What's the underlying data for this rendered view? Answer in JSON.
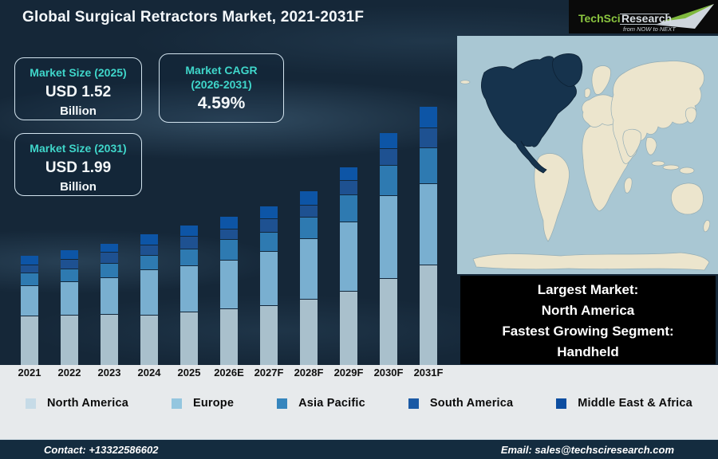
{
  "header": {
    "title": "Global Surgical Retractors Market, 2021-2031F"
  },
  "logo": {
    "brand_primary": "TechSci",
    "brand_secondary": "Research",
    "tagline": "from NOW to NEXT",
    "accent_green": "#8bc53f",
    "silver": "#d7dde2"
  },
  "info_boxes": [
    {
      "title": "Market Size (2025)",
      "value": "USD 1.52",
      "unit": "Billion"
    },
    {
      "title": "Market CAGR",
      "title_line2": "(2026-2031)",
      "value": "4.59%"
    },
    {
      "title": "Market Size (2031)",
      "value": "USD 1.99",
      "unit": "Billion"
    }
  ],
  "highlight_box": {
    "lines": [
      "Largest Market:",
      "North America",
      "Fastest Growing Segment:",
      "Handheld"
    ]
  },
  "chart_data": {
    "type": "stacked-bar",
    "title": "Global Surgical Retractors Market, 2021-2031F",
    "categories": [
      "2021",
      "2022",
      "2023",
      "2024",
      "2025",
      "2026E",
      "2027F",
      "2028F",
      "2029F",
      "2030F",
      "2031F"
    ],
    "series": [
      {
        "name": "North America",
        "color": "#a9c0cc",
        "values": [
          62,
          63,
          64,
          63,
          67,
          71,
          75,
          83,
          93,
          109,
          126
        ]
      },
      {
        "name": "Europe",
        "color": "#79afd0",
        "values": [
          38,
          42,
          46,
          57,
          58,
          61,
          68,
          76,
          87,
          104,
          102
        ]
      },
      {
        "name": "Asia Pacific",
        "color": "#2e7ab1",
        "values": [
          16,
          16,
          18,
          18,
          21,
          26,
          24,
          27,
          34,
          38,
          45
        ]
      },
      {
        "name": "South America",
        "color": "#1e5191",
        "values": [
          10,
          12,
          14,
          13,
          16,
          13,
          17,
          15,
          18,
          21,
          25
        ]
      },
      {
        "name": "Middle East & Africa",
        "color": "#0d55a6",
        "values": [
          11,
          11,
          10,
          13,
          13,
          15,
          15,
          17,
          16,
          19,
          26
        ]
      }
    ],
    "units": "relative height px (illustrative chart, no numeric axis shown)",
    "grid": false,
    "numeric_axis": false,
    "legend_position": "bottom",
    "annotated_values": {
      "market_size_2025_usd_billion": 1.52,
      "market_size_2031_usd_billion": 1.99,
      "cagr_2026_2031_percent": 4.59
    }
  },
  "legend": {
    "items": [
      {
        "label": "North America",
        "color": "#c6dbe7"
      },
      {
        "label": "Europe",
        "color": "#94c6df"
      },
      {
        "label": "Asia Pacific",
        "color": "#3585bd"
      },
      {
        "label": "South America",
        "color": "#1b5aa5"
      },
      {
        "label": "Middle East & Africa",
        "color": "#0c4da0"
      }
    ]
  },
  "map": {
    "highlight_region": "North America",
    "ocean_color": "#a9c7d3",
    "land_color": "#ece5cd",
    "highlight_color": "#16334d"
  },
  "footer": {
    "contact": "Contact: +13322586602",
    "email": "Email: sales@techsciresearch.com"
  }
}
